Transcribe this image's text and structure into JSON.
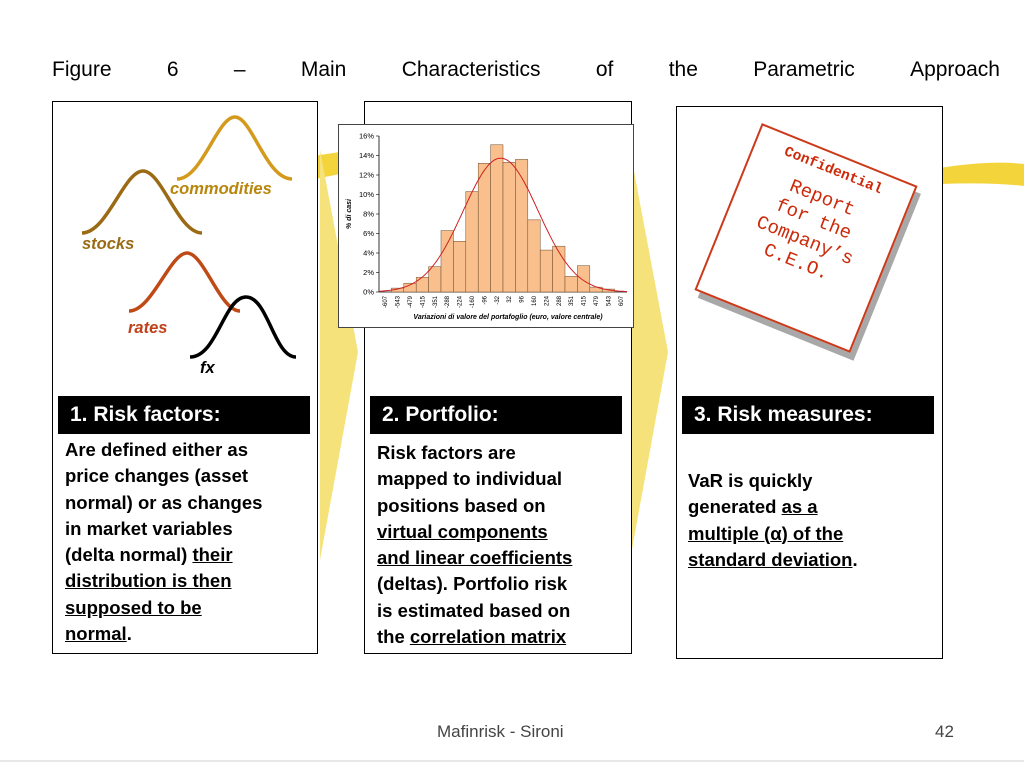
{
  "slide": {
    "title_words": [
      "Figure",
      "6",
      "–",
      "Main",
      "Characteristics",
      "of",
      "the",
      "Parametric",
      "Approach"
    ],
    "footer_left": "Mafinrisk - Sironi",
    "footer_page": "42"
  },
  "risk_factors_panel": {
    "curve_labels": {
      "commodities": "commodities",
      "stocks": "stocks",
      "rates": "rates",
      "fx": "fx"
    },
    "heading": "1. Risk factors:",
    "text_lines": [
      "Are defined either as",
      "price changes (asset",
      "normal) or as changes",
      "in market variables",
      "(delta normal) ",
      "their",
      "distribution is then",
      "supposed to be",
      "normal",
      "."
    ]
  },
  "portfolio_panel": {
    "heading": "2. Portfolio:",
    "text_lines": [
      "Risk factors are",
      "mapped to individual",
      "positions based on",
      "virtual components",
      "and linear coefficients",
      "(deltas). Portfolio risk",
      "is estimated based on",
      "the ",
      "correlation matrix"
    ]
  },
  "risk_measures_panel": {
    "heading": "3. Risk measures:",
    "text_lines": [
      "VaR is quickly",
      "generated ",
      "as a",
      "multiple (",
      "α",
      ") of the",
      "standard deviation",
      "."
    ],
    "stamp": {
      "label": "Confidential",
      "lines": [
        "Report",
        "for the",
        "Company’s",
        "C.E.O."
      ]
    }
  },
  "colors": {
    "accent_yellow": "#f3d43a",
    "commodities_curve": "#d49a1e",
    "stocks_curve": "#9a6a14",
    "rates_curve": "#c04a16",
    "fx_curve": "#000000",
    "label_gold": "#b8860b",
    "label_rust": "#c0401a",
    "bar_fill": "#f9c08e",
    "normal_curve": "#d02020",
    "stamp_red": "#cc2a0a"
  },
  "chart_data": {
    "type": "bar",
    "xlabel": "Variazioni di valore del portafoglio (euro, valore centrale)",
    "ylabel": "% di casi",
    "ylim": [
      0,
      16
    ],
    "y_ticks": [
      "0%",
      "2%",
      "4%",
      "6%",
      "8%",
      "10%",
      "12%",
      "14%",
      "16%"
    ],
    "categories": [
      "-607",
      "-543",
      "-479",
      "-415",
      "-351",
      "-288",
      "-224",
      "-160",
      "-96",
      "-32",
      "32",
      "96",
      "160",
      "224",
      "288",
      "351",
      "415",
      "479",
      "543",
      "607"
    ],
    "values": [
      0,
      0.4,
      0.9,
      1.5,
      2.6,
      6.3,
      5.2,
      10.3,
      13.2,
      15.1,
      13.3,
      13.6,
      7.4,
      4.3,
      4.7,
      1.6,
      2.7,
      0.5,
      0.3,
      0
    ],
    "overlay_curve": "normal",
    "grid": false
  }
}
